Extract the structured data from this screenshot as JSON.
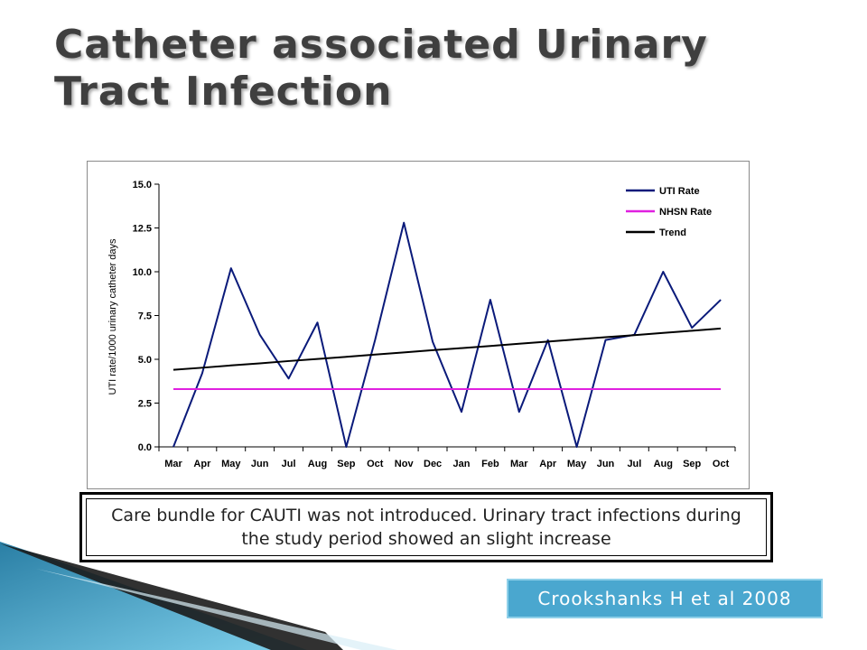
{
  "slide": {
    "title": "Catheter associated Urinary Tract Infection",
    "note": "Care bundle for CAUTI was not introduced.  Urinary tract infections during the study period showed an slight increase",
    "citation": "Crookshanks  H et al 2008"
  },
  "colors": {
    "uti": "#0a1a7a",
    "nhsn": "#e020e0",
    "trend": "#000000",
    "accent": "#4aa7cf"
  },
  "chart_data": {
    "type": "line",
    "title": "",
    "xlabel": "",
    "ylabel": "UTI rate/1000 urinary catheter days",
    "ylim": [
      0,
      15
    ],
    "yticks": [
      "0.0",
      "2.5",
      "5.0",
      "7.5",
      "10.0",
      "12.5",
      "15.0"
    ],
    "categories": [
      "Mar",
      "Apr",
      "May",
      "Jun",
      "Jul",
      "Aug",
      "Sep",
      "Oct",
      "Nov",
      "Dec",
      "Jan",
      "Feb",
      "Mar",
      "Apr",
      "May",
      "Jun",
      "Jul",
      "Aug",
      "Sep",
      "Oct"
    ],
    "legend_position": "top-right",
    "grid": false,
    "series": [
      {
        "name": "UTI Rate",
        "color": "#0a1a7a",
        "values": [
          0.0,
          4.2,
          10.2,
          6.4,
          3.9,
          7.1,
          0.0,
          6.1,
          12.8,
          6.0,
          2.0,
          8.4,
          2.0,
          6.1,
          0.0,
          6.1,
          6.4,
          10.0,
          6.8,
          8.4
        ]
      },
      {
        "name": "NHSN Rate",
        "color": "#e020e0",
        "values": [
          3.3,
          3.3,
          3.3,
          3.3,
          3.3,
          3.3,
          3.3,
          3.3,
          3.3,
          3.3,
          3.3,
          3.3,
          3.3,
          3.3,
          3.3,
          3.3,
          3.3,
          3.3,
          3.3,
          3.3
        ]
      },
      {
        "name": "Trend",
        "color": "#000000",
        "values": [
          4.4,
          4.52,
          4.65,
          4.77,
          4.9,
          5.02,
          5.14,
          5.27,
          5.39,
          5.52,
          5.64,
          5.76,
          5.89,
          6.01,
          6.14,
          6.26,
          6.38,
          6.51,
          6.63,
          6.76
        ]
      }
    ]
  }
}
